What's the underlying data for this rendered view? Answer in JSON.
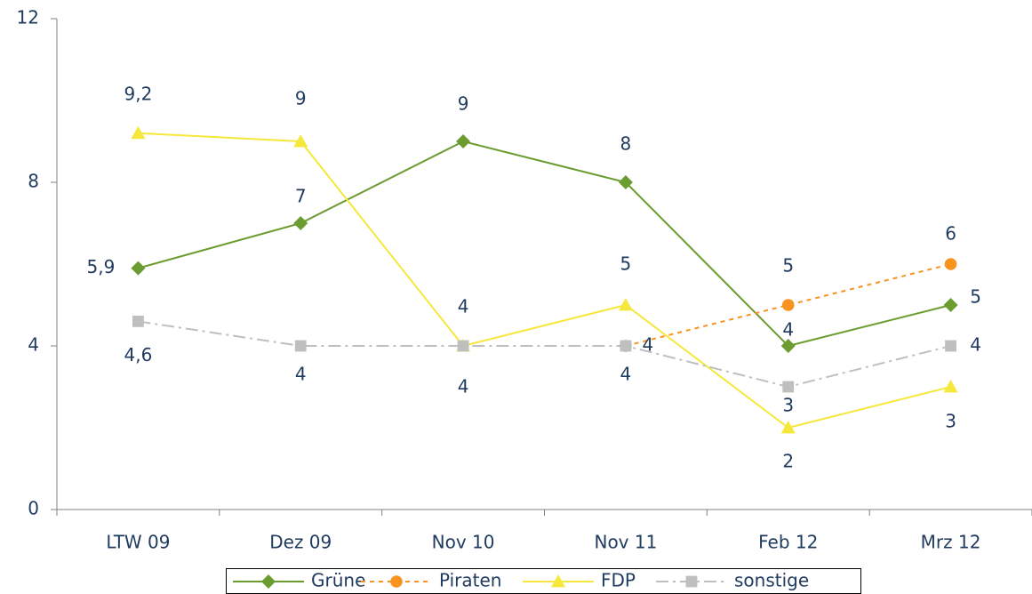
{
  "chart_data": {
    "type": "line",
    "categories": [
      "LTW 09",
      "Dez 09",
      "Nov 10",
      "Nov 11",
      "Feb 12",
      "Mrz 12"
    ],
    "series": [
      {
        "name": "Grüne",
        "color": "#6a9c2f",
        "values": [
          5.9,
          7,
          9,
          8,
          4,
          5
        ],
        "value_labels": [
          "5,9",
          "7",
          "9",
          "8",
          "4",
          "5"
        ]
      },
      {
        "name": "Piraten",
        "color": "#f7931e",
        "values": [
          null,
          null,
          null,
          4,
          5,
          6
        ],
        "value_labels": [
          null,
          null,
          null,
          "4",
          "5",
          "6"
        ]
      },
      {
        "name": "FDP",
        "color": "#f5e83a",
        "values": [
          9.2,
          9,
          4,
          5,
          2,
          3
        ],
        "value_labels": [
          "9,2",
          "9",
          "4",
          "5",
          "2",
          "3"
        ]
      },
      {
        "name": "sonstige",
        "color": "#bfbfbf",
        "values": [
          4.6,
          4,
          4,
          4,
          3,
          4
        ],
        "value_labels": [
          "4,6",
          "4",
          "4",
          "4",
          "3",
          "4"
        ]
      }
    ],
    "ylim": [
      0,
      12
    ],
    "yticks": [
      0,
      4,
      8,
      12
    ],
    "legend": "bottom"
  }
}
